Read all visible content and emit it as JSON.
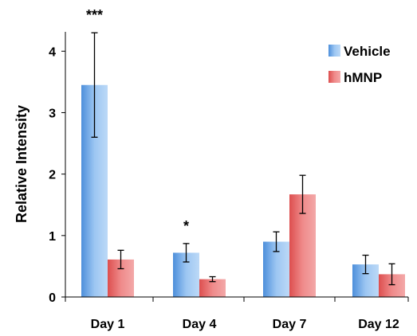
{
  "chart_data": {
    "type": "bar",
    "title": "",
    "xlabel": "",
    "ylabel": "Relative Intensity",
    "ylim": [
      0,
      4.6
    ],
    "yticks": [
      0,
      1,
      2,
      3,
      4
    ],
    "categories": [
      "Day 1",
      "Day 4",
      "Day 7",
      "Day 12"
    ],
    "series": [
      {
        "name": "Vehicle",
        "color": "#6fa8e8",
        "values": [
          3.45,
          0.72,
          0.9,
          0.53
        ],
        "errors": [
          0.85,
          0.15,
          0.16,
          0.15
        ]
      },
      {
        "name": "hMNP",
        "color": "#e86a6a",
        "values": [
          0.61,
          0.29,
          1.67,
          0.37
        ],
        "errors": [
          0.15,
          0.04,
          0.31,
          0.17
        ]
      }
    ],
    "annotations": [
      {
        "text": "***",
        "category": "Day 1",
        "series": "Vehicle"
      },
      {
        "text": "*",
        "category": "Day 4",
        "series": "Vehicle"
      }
    ],
    "legend_position": "top-right",
    "grid": false
  }
}
